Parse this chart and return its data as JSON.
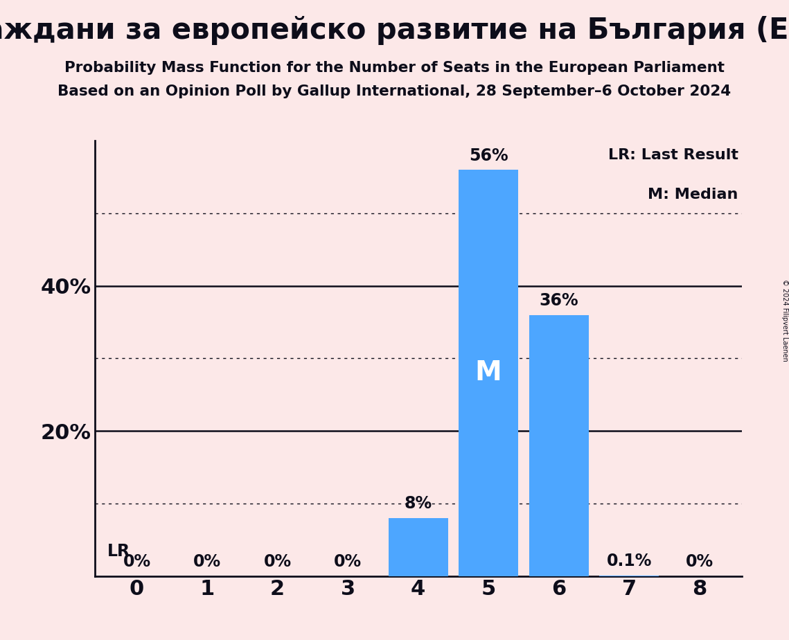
{
  "title": "Граждани за европейско развитие на България (ЕРР)",
  "subtitle1": "Probability Mass Function for the Number of Seats in the European Parliament",
  "subtitle2": "Based on an Opinion Poll by Gallup International, 28 September–6 October 2024",
  "copyright": "© 2024 Filipvert Laenen",
  "categories": [
    0,
    1,
    2,
    3,
    4,
    5,
    6,
    7,
    8
  ],
  "values": [
    0.0,
    0.0,
    0.0,
    0.0,
    8.0,
    56.0,
    36.0,
    0.1,
    0.0
  ],
  "bar_color": "#4da6ff",
  "background_color": "#fce8e8",
  "text_color": "#0d0d1a",
  "median_seat": 5,
  "lr_seat": 0,
  "yticks": [
    20,
    40
  ],
  "dotted_gridlines": [
    10,
    30,
    50
  ],
  "solid_gridlines": [
    20,
    40
  ],
  "ylim": [
    0,
    60
  ],
  "bar_labels": [
    "0%",
    "0%",
    "0%",
    "0%",
    "8%",
    "56%",
    "36%",
    "0.1%",
    "0%"
  ],
  "legend_text1": "LR: Last Result",
  "legend_text2": "M: Median",
  "lr_label": "LR"
}
